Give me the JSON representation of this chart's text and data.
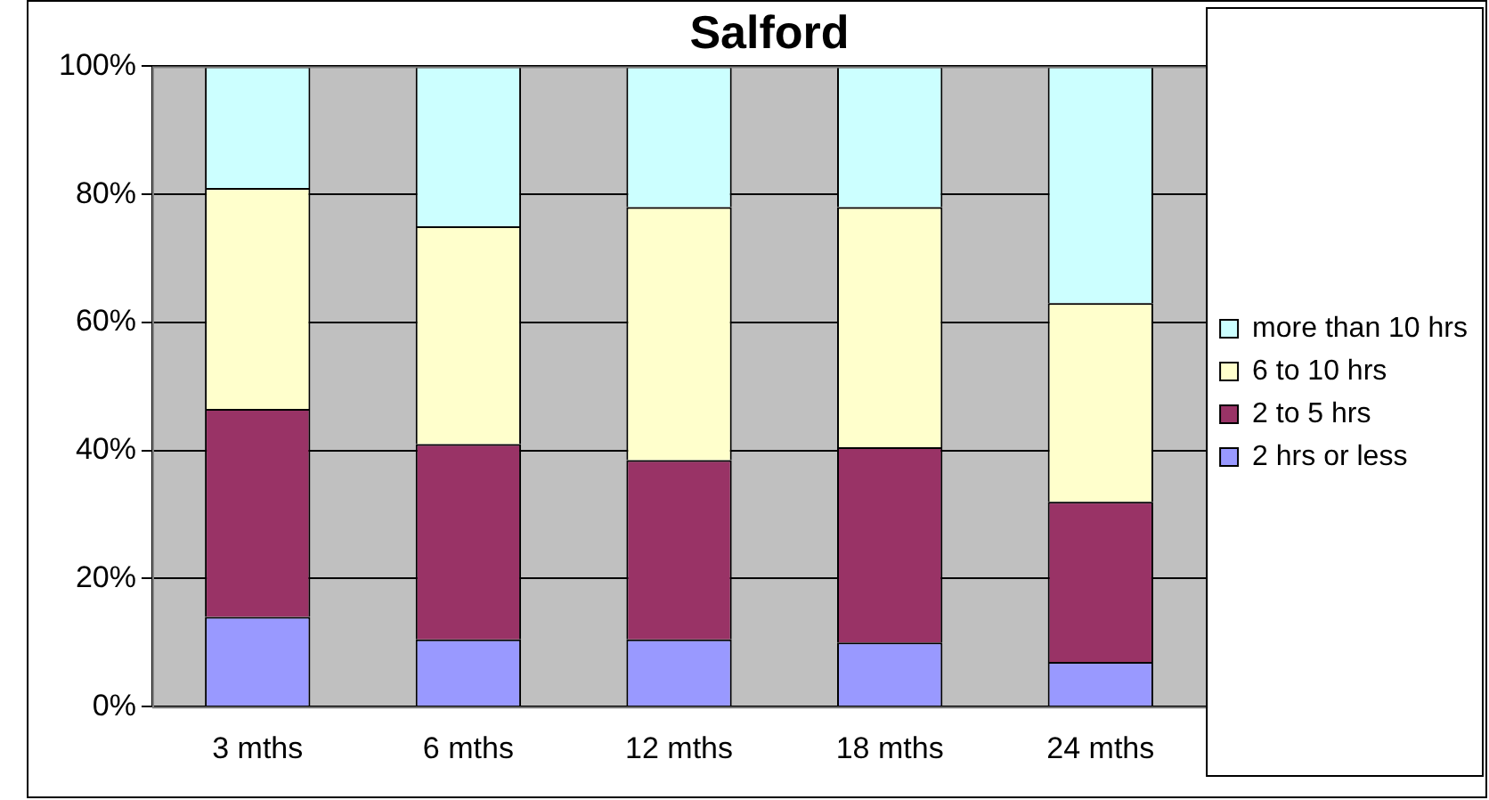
{
  "chart_data": {
    "type": "bar",
    "title": "Salford",
    "stacked": true,
    "categories": [
      "3 mths",
      "6 mths",
      "12 mths",
      "18 mths",
      "24 mths"
    ],
    "series": [
      {
        "name": "2 hrs or less",
        "color": "#9999ff",
        "values": [
          14,
          10.5,
          10.5,
          10,
          7
        ]
      },
      {
        "name": "2 to 5 hrs",
        "color": "#993366",
        "values": [
          32.5,
          30.5,
          28,
          30.5,
          25
        ]
      },
      {
        "name": "6 to 10 hrs",
        "color": "#ffffcc",
        "values": [
          34.5,
          34,
          39.5,
          37.5,
          31
        ]
      },
      {
        "name": "more than 10 hrs",
        "color": "#ccffff",
        "values": [
          19,
          25,
          22,
          22,
          37
        ]
      }
    ],
    "ylim": [
      0,
      100
    ],
    "yticks": [
      {
        "value": 0,
        "label": "0%"
      },
      {
        "value": 20,
        "label": "20%"
      },
      {
        "value": 40,
        "label": "40%"
      },
      {
        "value": 60,
        "label": "60%"
      },
      {
        "value": 80,
        "label": "80%"
      },
      {
        "value": 100,
        "label": "100%"
      }
    ],
    "grid": "y",
    "legend": "right"
  }
}
